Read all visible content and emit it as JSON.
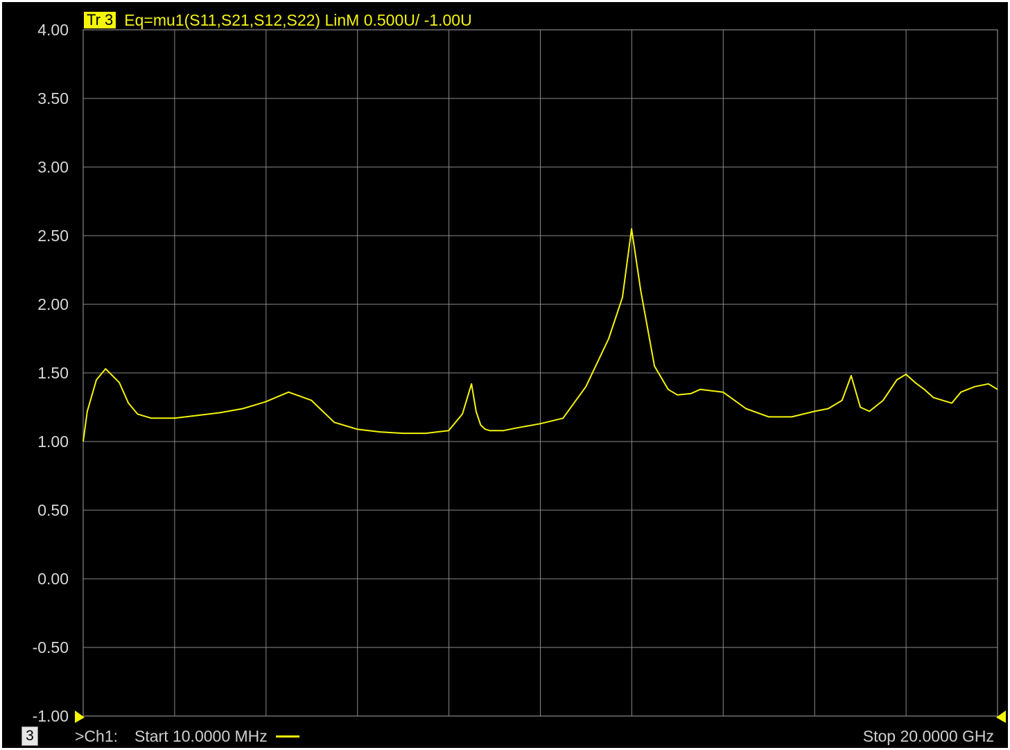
{
  "header": {
    "trace_badge": "Tr 3",
    "trace_equation": "Eq=mu1(S11,S21,S12,S22) LinM 0.500U/  -1.00U"
  },
  "footer": {
    "channel_number": "3",
    "channel_label": ">Ch1:",
    "start_label": "Start  10.0000 MHz",
    "stop_label": "Stop  20.0000 GHz"
  },
  "colors": {
    "background": "#000000",
    "trace": "#f5f50a",
    "grid": "#8a8a8a",
    "text": "#d8d8d8"
  },
  "chart_data": {
    "type": "line",
    "title": "Eq=mu1(S11,S21,S12,S22) LinM 0.500U/  -1.00U",
    "xlabel": "",
    "ylabel": "",
    "xlim": [
      0.01,
      20.0
    ],
    "ylim": [
      -1.0,
      4.0
    ],
    "grid": true,
    "x_divisions": 10,
    "y_ticks": [
      "4.00",
      "3.50",
      "3.00",
      "2.50",
      "2.00",
      "1.50",
      "1.00",
      "0.50",
      "0.00",
      "-0.50",
      "-1.00"
    ],
    "series": [
      {
        "name": "",
        "x": [
          0.01,
          0.1,
          0.3,
          0.5,
          0.8,
          1.0,
          1.2,
          1.5,
          1.8,
          2.0,
          2.5,
          3.0,
          3.5,
          4.0,
          4.5,
          5.0,
          5.5,
          6.0,
          6.5,
          7.0,
          7.5,
          8.0,
          8.3,
          8.5,
          8.6,
          8.7,
          8.8,
          8.9,
          9.0,
          9.2,
          9.5,
          10.0,
          10.5,
          11.0,
          11.5,
          11.8,
          12.0,
          12.2,
          12.5,
          12.8,
          13.0,
          13.3,
          13.5,
          14.0,
          14.5,
          15.0,
          15.5,
          16.0,
          16.3,
          16.6,
          16.8,
          17.0,
          17.2,
          17.5,
          17.8,
          18.0,
          18.2,
          18.4,
          18.6,
          18.8,
          19.0,
          19.2,
          19.5,
          19.8,
          20.0
        ],
        "y": [
          1.0,
          1.22,
          1.45,
          1.53,
          1.43,
          1.28,
          1.2,
          1.17,
          1.17,
          1.17,
          1.19,
          1.21,
          1.24,
          1.29,
          1.36,
          1.3,
          1.14,
          1.09,
          1.07,
          1.06,
          1.06,
          1.08,
          1.2,
          1.42,
          1.22,
          1.12,
          1.09,
          1.08,
          1.08,
          1.08,
          1.1,
          1.13,
          1.17,
          1.4,
          1.75,
          2.05,
          2.55,
          2.1,
          1.55,
          1.38,
          1.34,
          1.35,
          1.38,
          1.36,
          1.24,
          1.18,
          1.18,
          1.22,
          1.24,
          1.3,
          1.48,
          1.25,
          1.22,
          1.3,
          1.45,
          1.49,
          1.43,
          1.38,
          1.32,
          1.3,
          1.28,
          1.36,
          1.4,
          1.42,
          1.38
        ]
      }
    ]
  }
}
